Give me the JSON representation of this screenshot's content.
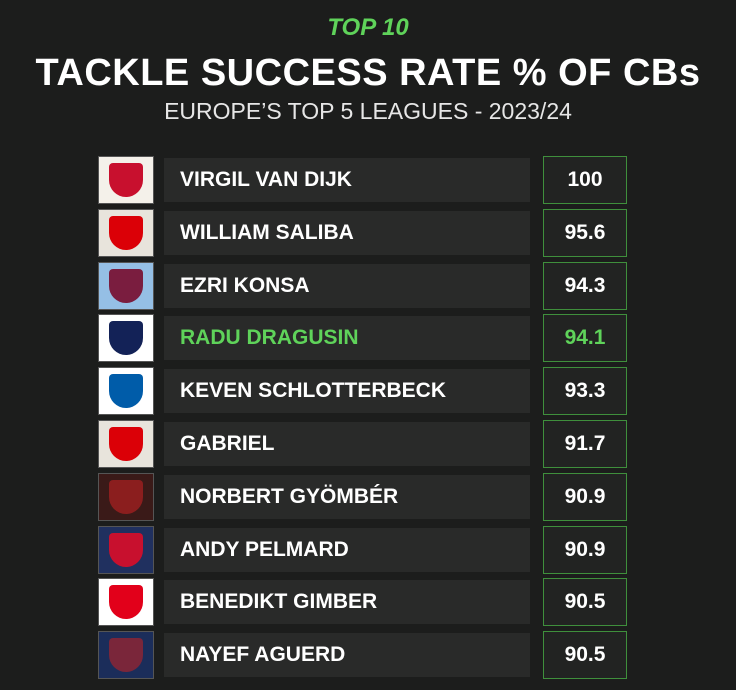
{
  "header": {
    "kicker": "TOP 10",
    "title": "TACKLE SUCCESS RATE % OF CBs",
    "subtitle": "EUROPE’S TOP 5 LEAGUES - 2023/24"
  },
  "table": {
    "rows": [
      {
        "player": "VIRGIL VAN DIJK",
        "value": 100,
        "color": "#ffffff"
      },
      {
        "player": "WILLIAM SALIBA",
        "value": 95.6,
        "color": "#ffffff"
      },
      {
        "player": "EZRI KONSA",
        "value": 94.3,
        "color": "#ffffff"
      },
      {
        "player": "RADU DRAGUSIN",
        "value": 94.1,
        "color": "#5fd35a"
      },
      {
        "player": "KEVEN SCHLOTTERBECK",
        "value": 93.3,
        "color": "#ffffff"
      },
      {
        "player": "GABRIEL",
        "value": 91.7,
        "color": "#ffffff"
      },
      {
        "player": "NORBERT GYÖMBÉR",
        "value": 90.9,
        "color": "#ffffff"
      },
      {
        "player": "ANDY PELMARD",
        "value": 90.9,
        "color": "#ffffff"
      },
      {
        "player": "BENEDIKT GIMBER",
        "value": 90.5,
        "color": "#ffffff"
      },
      {
        "player": "NAYEF AGUERD",
        "value": 90.5,
        "color": "#ffffff"
      }
    ]
  }
}
